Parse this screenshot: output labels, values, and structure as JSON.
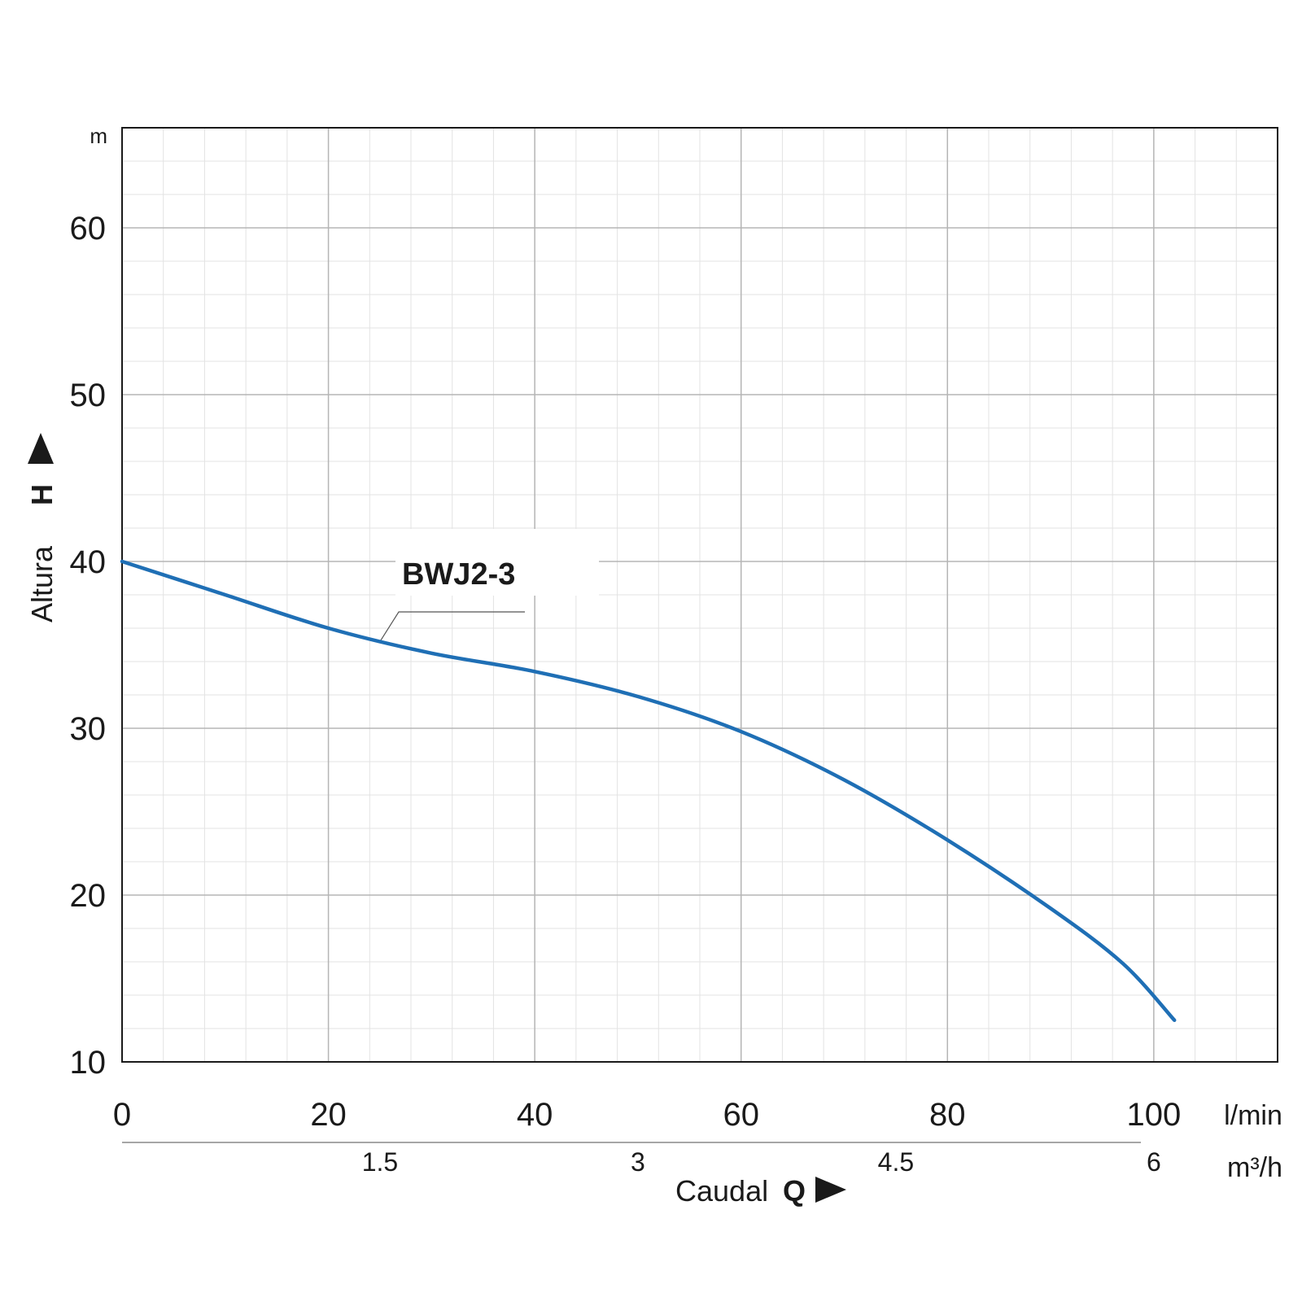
{
  "chart_data": {
    "type": "line",
    "y_axis": {
      "title": "Altura",
      "symbol": "H",
      "unit": "m",
      "range": [
        10,
        66
      ],
      "ticks": [
        10,
        20,
        30,
        40,
        50,
        60
      ],
      "tick_labels": [
        "10",
        "20",
        "30",
        "40",
        "50",
        "60"
      ],
      "minor_step": 2
    },
    "x_axis": {
      "title": "Caudal",
      "symbol": "Q",
      "unit": "l/min",
      "range": [
        0,
        112
      ],
      "ticks": [
        0,
        20,
        40,
        60,
        80,
        100
      ],
      "tick_labels": [
        "0",
        "20",
        "40",
        "60",
        "80",
        "100"
      ],
      "minor_step": 4
    },
    "x_axis_secondary": {
      "unit": "m³/h",
      "ticks": [
        1.5,
        3,
        4.5,
        6
      ],
      "tick_labels": [
        "1.5",
        "3",
        "4.5",
        "6"
      ]
    },
    "grid": true,
    "series": [
      {
        "name": "BWJ2-3",
        "color": "#1f6fb5",
        "x": [
          0,
          10,
          20,
          30,
          40,
          50,
          60,
          70,
          80,
          90,
          97,
          102
        ],
        "y": [
          40,
          38,
          36,
          34.5,
          33.4,
          31.9,
          29.8,
          26.9,
          23.3,
          19.2,
          15.9,
          12.5
        ]
      }
    ]
  }
}
